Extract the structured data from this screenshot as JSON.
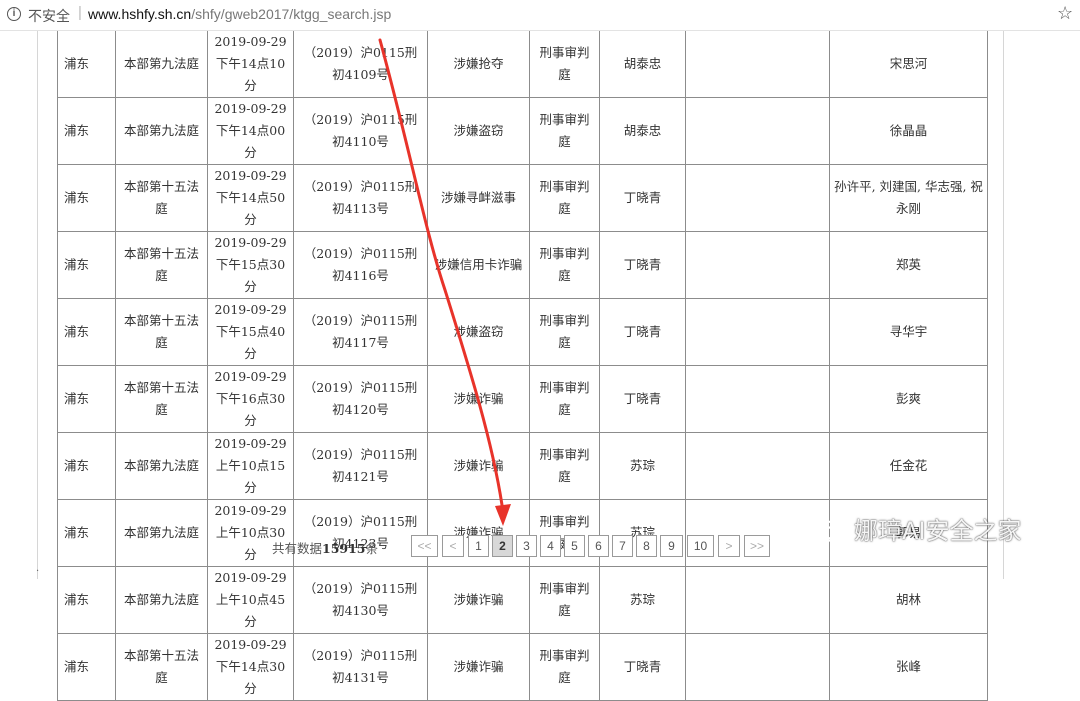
{
  "browser": {
    "security_label": "不安全",
    "separator": "|",
    "url_host": "www.hshfy.sh.cn",
    "url_path": "/shfy/gweb2017/ktgg_search.jsp"
  },
  "table": {
    "rows": [
      {
        "area": "浦东",
        "court": "本部第九法庭",
        "time": "2019-09-29下午14点10分",
        "case": "（2019）沪0115刑初4109号",
        "cause": "涉嫌抢夺",
        "type": "刑事审判庭",
        "judge": "胡泰忠",
        "blank": "",
        "party": "宋思河"
      },
      {
        "area": "浦东",
        "court": "本部第九法庭",
        "time": "2019-09-29下午14点00分",
        "case": "（2019）沪0115刑初4110号",
        "cause": "涉嫌盗窃",
        "type": "刑事审判庭",
        "judge": "胡泰忠",
        "blank": "",
        "party": "徐晶晶"
      },
      {
        "area": "浦东",
        "court": "本部第十五法庭",
        "time": "2019-09-29下午14点50分",
        "case": "（2019）沪0115刑初4113号",
        "cause": "涉嫌寻衅滋事",
        "type": "刑事审判庭",
        "judge": "丁晓青",
        "blank": "",
        "party": "孙许平, 刘建国, 华志强, 祝永刚"
      },
      {
        "area": "浦东",
        "court": "本部第十五法庭",
        "time": "2019-09-29下午15点30分",
        "case": "（2019）沪0115刑初4116号",
        "cause": "涉嫌信用卡诈骗",
        "type": "刑事审判庭",
        "judge": "丁晓青",
        "blank": "",
        "party": "郑英"
      },
      {
        "area": "浦东",
        "court": "本部第十五法庭",
        "time": "2019-09-29下午15点40分",
        "case": "（2019）沪0115刑初4117号",
        "cause": "涉嫌盗窃",
        "type": "刑事审判庭",
        "judge": "丁晓青",
        "blank": "",
        "party": "寻华宇"
      },
      {
        "area": "浦东",
        "court": "本部第十五法庭",
        "time": "2019-09-29下午16点30分",
        "case": "（2019）沪0115刑初4120号",
        "cause": "涉嫌诈骗",
        "type": "刑事审判庭",
        "judge": "丁晓青",
        "blank": "",
        "party": "彭爽"
      },
      {
        "area": "浦东",
        "court": "本部第九法庭",
        "time": "2019-09-29上午10点15分",
        "case": "（2019）沪0115刑初4121号",
        "cause": "涉嫌诈骗",
        "type": "刑事审判庭",
        "judge": "苏琮",
        "blank": "",
        "party": "任金花"
      },
      {
        "area": "浦东",
        "court": "本部第九法庭",
        "time": "2019-09-29上午10点30分",
        "case": "（2019）沪0115刑初4123号",
        "cause": "涉嫌诈骗",
        "type": "刑事审判庭",
        "judge": "苏琮",
        "blank": "",
        "party": "郭易"
      },
      {
        "area": "浦东",
        "court": "本部第九法庭",
        "time": "2019-09-29上午10点45分",
        "case": "（2019）沪0115刑初4130号",
        "cause": "涉嫌诈骗",
        "type": "刑事审判庭",
        "judge": "苏琮",
        "blank": "",
        "party": "胡林"
      },
      {
        "area": "浦东",
        "court": "本部第十五法庭",
        "time": "2019-09-29下午14点30分",
        "case": "（2019）沪0115刑初4131号",
        "cause": "涉嫌诈骗",
        "type": "刑事审判庭",
        "judge": "丁晓青",
        "blank": "",
        "party": "张峰"
      }
    ]
  },
  "footer": {
    "total_prefix": "共有数据",
    "total_count": "15915",
    "total_suffix": "条"
  },
  "pager": {
    "first": "<<",
    "prev": "<",
    "pages": [
      "1",
      "2",
      "3",
      "4",
      "5",
      "6",
      "7",
      "8",
      "9",
      "10"
    ],
    "current": "2",
    "next": ">",
    "last": ">>"
  },
  "watermark": {
    "text": "娜璋AI安全之家"
  },
  "colors": {
    "annotation": "#e8332a",
    "border": "#8c8c8c",
    "current_page_bg": "#d8d8d8"
  }
}
